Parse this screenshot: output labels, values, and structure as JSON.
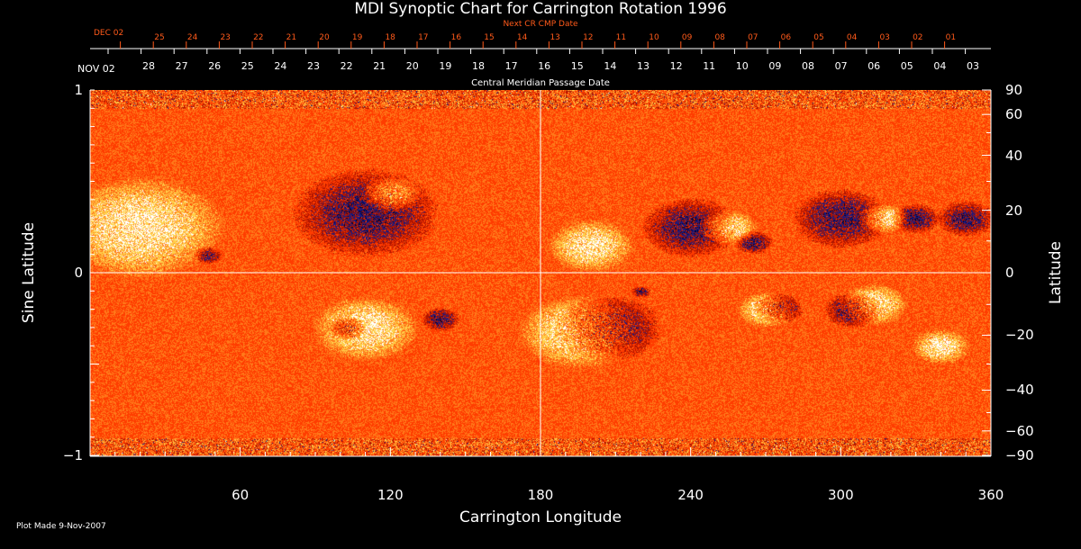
{
  "chart_data": {
    "type": "heatmap",
    "title": "MDI Synoptic Chart for Carrington Rotation 1996",
    "xlabel": "Carrington Longitude",
    "ylabel": "Sine Latitude",
    "ylabel_right": "Latitude",
    "xlim": [
      0,
      360
    ],
    "ylim": [
      -1,
      1
    ],
    "x_ticks": [
      "60",
      "120",
      "180",
      "240",
      "300",
      "360"
    ],
    "y_ticks_left": [
      "1",
      "0",
      "−1"
    ],
    "y_ticks_right": [
      "90",
      "60",
      "40",
      "20",
      "0",
      "−20",
      "−40",
      "−60",
      "−90"
    ],
    "top_axis_label": "Central Meridian Passage Date",
    "top_axis_start": "NOV 02",
    "top_axis_dates": [
      "28",
      "27",
      "26",
      "25",
      "24",
      "23",
      "22",
      "21",
      "20",
      "19",
      "18",
      "17",
      "16",
      "15",
      "14",
      "13",
      "12",
      "11",
      "10",
      "09",
      "08",
      "07",
      "06",
      "05",
      "04",
      "03"
    ],
    "next_cr_label": "Next CR CMP Date",
    "next_cr_start": "DEC 02",
    "next_cr_dates": [
      "25",
      "24",
      "23",
      "22",
      "21",
      "20",
      "19",
      "18",
      "17",
      "16",
      "15",
      "14",
      "13",
      "12",
      "11",
      "10",
      "09",
      "08",
      "07",
      "06",
      "05",
      "04",
      "03",
      "02",
      "01"
    ],
    "colormap": [
      "#000033",
      "#1a1a80",
      "#b01500",
      "#ff3c00",
      "#ff7a1a",
      "#ffd04a",
      "#ffffff"
    ],
    "footer": "Plot Made  9-Nov-2007"
  }
}
